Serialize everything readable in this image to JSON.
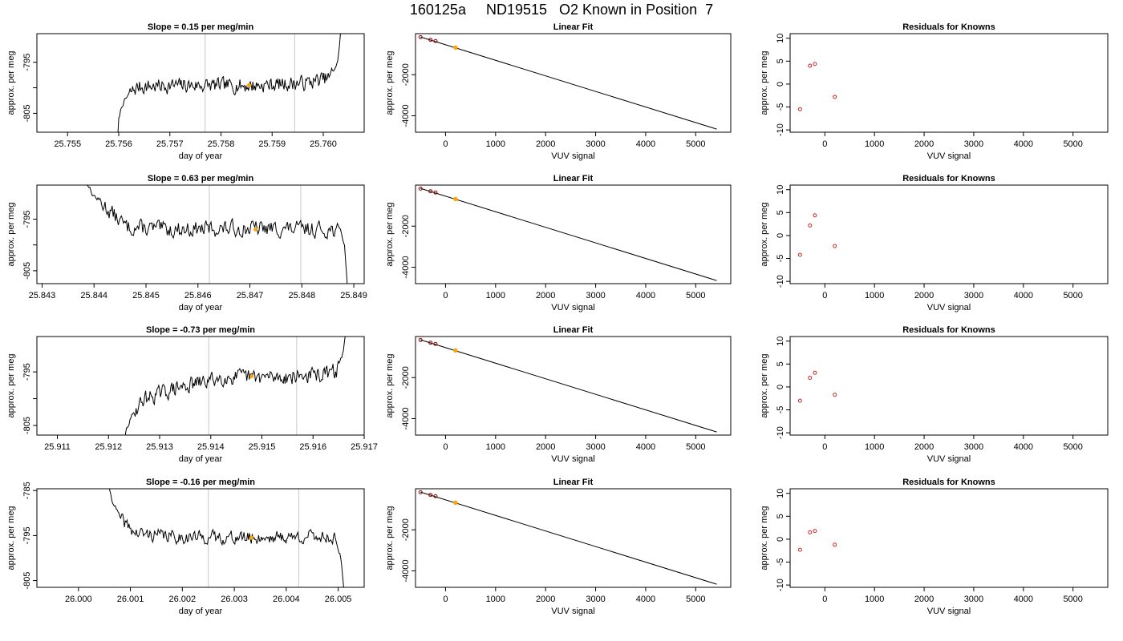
{
  "page": {
    "title": "160125a     ND19515   O2 Known in Position  7"
  },
  "colors": {
    "line": "#000000",
    "vline": "#c8c8c8",
    "marker": "#ffa500",
    "known_point": "#8b0000",
    "residual_point": "#cd2626"
  },
  "chart_data": [
    {
      "type": "line",
      "panel": "timeseries",
      "row": 1,
      "title": "Slope =  0.15  per meg/min",
      "xlabel": "day of year",
      "ylabel": "approx. per meg",
      "xlim": [
        25.7544,
        25.7608
      ],
      "ylim": [
        -808.7,
        -789.4
      ],
      "xticks": [
        25.755,
        25.756,
        25.757,
        25.758,
        25.759,
        25.76
      ],
      "xtick_labels": [
        "25.755",
        "25.756",
        "25.757",
        "25.758",
        "25.759",
        "25.760"
      ],
      "yticks": [
        -805,
        -800,
        -795
      ],
      "ytick_labels": [
        "-805",
        "",
        "-795"
      ],
      "vlines": [
        25.75769,
        25.75944
      ],
      "marker": {
        "x": 25.75855,
        "y": -799.5
      },
      "series": [
        {
          "x_start": 25.75595,
          "x_end": 25.76035,
          "trend": [
            [
              0,
              -815
            ],
            [
              0.012,
              -806
            ],
            [
              0.025,
              -803.5
            ],
            [
              0.06,
              -801
            ],
            [
              0.1,
              -799.8
            ],
            [
              0.3,
              -799.5
            ],
            [
              0.6,
              -799.6
            ],
            [
              0.85,
              -799.0
            ],
            [
              0.95,
              -798.0
            ],
            [
              0.985,
              -795
            ],
            [
              1.0,
              -788
            ]
          ],
          "noise": 1.3,
          "seed": 7
        }
      ]
    },
    {
      "type": "scatter",
      "panel": "fit",
      "row": 1,
      "title": "Linear Fit",
      "xlabel": "VUV signal",
      "ylabel": "approx. per meg",
      "xlim": [
        -600,
        5700
      ],
      "ylim": [
        -4800,
        0
      ],
      "xticks": [
        0,
        1000,
        2000,
        3000,
        4000,
        5000
      ],
      "xtick_labels": [
        "0",
        "1000",
        "2000",
        "3000",
        "4000",
        "5000"
      ],
      "yticks": [
        -4000,
        -2000
      ],
      "ytick_labels": [
        "-4000",
        "-2000"
      ],
      "line": {
        "x": [
          -500,
          5420
        ],
        "y": [
          -160,
          -4650
        ]
      },
      "points": [
        {
          "x": -500,
          "y": -170
        },
        {
          "x": -300,
          "y": -300
        },
        {
          "x": -200,
          "y": -360
        },
        {
          "x": 200,
          "y": -680
        }
      ],
      "highlight": {
        "x": 200,
        "y": -680
      }
    },
    {
      "type": "scatter",
      "panel": "residuals",
      "row": 1,
      "title": "Residuals for Knowns",
      "xlabel": "VUV signal",
      "ylabel": "approx. per meg",
      "xlim": [
        -700,
        5700
      ],
      "ylim": [
        -10.5,
        11
      ],
      "xticks": [
        0,
        1000,
        2000,
        3000,
        4000,
        5000
      ],
      "xtick_labels": [
        "0",
        "1000",
        "2000",
        "3000",
        "4000",
        "5000"
      ],
      "yticks": [
        -10,
        -5,
        0,
        5,
        10
      ],
      "ytick_labels": [
        "-10",
        "-5",
        "0",
        "5",
        "10"
      ],
      "points": [
        {
          "x": -500,
          "y": -5.5
        },
        {
          "x": -300,
          "y": 4.0
        },
        {
          "x": -200,
          "y": 4.4
        },
        {
          "x": 200,
          "y": -2.8
        }
      ]
    },
    {
      "type": "line",
      "panel": "timeseries",
      "row": 2,
      "title": "Slope =  0.63  per meg/min",
      "xlabel": "day of year",
      "ylabel": "approx. per meg",
      "xlim": [
        25.8429,
        25.8492
      ],
      "ylim": [
        -807.5,
        -788.4
      ],
      "xticks": [
        25.843,
        25.844,
        25.845,
        25.846,
        25.847,
        25.848,
        25.849
      ],
      "xtick_labels": [
        "25.843",
        "25.844",
        "25.845",
        "25.846",
        "25.847",
        "25.848",
        "25.849"
      ],
      "yticks": [
        -805,
        -800,
        -795
      ],
      "ytick_labels": [
        "-805",
        "",
        "-795"
      ],
      "vlines": [
        25.84622,
        25.84798
      ],
      "marker": {
        "x": 25.84711,
        "y": -797.0
      },
      "series": [
        {
          "x_start": 25.8438,
          "x_end": 25.8489,
          "trend": [
            [
              0,
              -786
            ],
            [
              0.03,
              -790
            ],
            [
              0.1,
              -793.5
            ],
            [
              0.16,
              -796.5
            ],
            [
              0.3,
              -797.0
            ],
            [
              0.6,
              -796.8
            ],
            [
              0.9,
              -797.0
            ],
            [
              0.97,
              -797.2
            ],
            [
              0.985,
              -800
            ],
            [
              1.0,
              -812
            ]
          ],
          "noise": 1.4,
          "seed": 13
        }
      ]
    },
    {
      "type": "scatter",
      "panel": "fit",
      "row": 2,
      "title": "Linear Fit",
      "xlabel": "VUV signal",
      "ylabel": "approx. per meg",
      "xlim": [
        -600,
        5700
      ],
      "ylim": [
        -4800,
        0
      ],
      "xticks": [
        0,
        1000,
        2000,
        3000,
        4000,
        5000
      ],
      "xtick_labels": [
        "0",
        "1000",
        "2000",
        "3000",
        "4000",
        "5000"
      ],
      "yticks": [
        -4000,
        -2000
      ],
      "ytick_labels": [
        "-4000",
        "-2000"
      ],
      "line": {
        "x": [
          -500,
          5420
        ],
        "y": [
          -160,
          -4650
        ]
      },
      "points": [
        {
          "x": -500,
          "y": -170
        },
        {
          "x": -300,
          "y": -300
        },
        {
          "x": -200,
          "y": -360
        },
        {
          "x": 200,
          "y": -680
        }
      ],
      "highlight": {
        "x": 200,
        "y": -680
      }
    },
    {
      "type": "scatter",
      "panel": "residuals",
      "row": 2,
      "title": "Residuals for Knowns",
      "xlabel": "VUV signal",
      "ylabel": "approx. per meg",
      "xlim": [
        -700,
        5700
      ],
      "ylim": [
        -10.5,
        11
      ],
      "xticks": [
        0,
        1000,
        2000,
        3000,
        4000,
        5000
      ],
      "xtick_labels": [
        "0",
        "1000",
        "2000",
        "3000",
        "4000",
        "5000"
      ],
      "yticks": [
        -10,
        -5,
        0,
        5,
        10
      ],
      "ytick_labels": [
        "-10",
        "-5",
        "0",
        "5",
        "10"
      ],
      "points": [
        {
          "x": -500,
          "y": -4.2
        },
        {
          "x": -300,
          "y": 2.2
        },
        {
          "x": -200,
          "y": 4.4
        },
        {
          "x": 200,
          "y": -2.3
        }
      ]
    },
    {
      "type": "line",
      "panel": "timeseries",
      "row": 3,
      "title": "Slope =  -0.73  per meg/min",
      "xlabel": "day of year",
      "ylabel": "approx. per meg",
      "xlim": [
        25.9106,
        25.917
      ],
      "ylim": [
        -806.8,
        -788.4
      ],
      "xticks": [
        25.911,
        25.912,
        25.913,
        25.914,
        25.915,
        25.916,
        25.917
      ],
      "xtick_labels": [
        "25.911",
        "25.912",
        "25.913",
        "25.914",
        "25.915",
        "25.916",
        "25.917"
      ],
      "yticks": [
        -805,
        -800,
        -795
      ],
      "ytick_labels": [
        "-805",
        "",
        "-795"
      ],
      "vlines": [
        25.91396,
        25.91568
      ],
      "marker": {
        "x": 25.9148,
        "y": -795.8
      },
      "series": [
        {
          "x_start": 25.91225,
          "x_end": 25.91668,
          "trend": [
            [
              0,
              -815
            ],
            [
              0.02,
              -806
            ],
            [
              0.05,
              -803
            ],
            [
              0.1,
              -800
            ],
            [
              0.25,
              -798
            ],
            [
              0.45,
              -796
            ],
            [
              0.7,
              -796
            ],
            [
              0.9,
              -795.5
            ],
            [
              0.95,
              -794.8
            ],
            [
              0.975,
              -792
            ],
            [
              1.0,
              -786
            ]
          ],
          "noise": 1.3,
          "seed": 29
        }
      ]
    },
    {
      "type": "scatter",
      "panel": "fit",
      "row": 3,
      "title": "Linear Fit",
      "xlabel": "VUV signal",
      "ylabel": "approx. per meg",
      "xlim": [
        -600,
        5700
      ],
      "ylim": [
        -4800,
        0
      ],
      "xticks": [
        0,
        1000,
        2000,
        3000,
        4000,
        5000
      ],
      "xtick_labels": [
        "0",
        "1000",
        "2000",
        "3000",
        "4000",
        "5000"
      ],
      "yticks": [
        -4000,
        -2000
      ],
      "ytick_labels": [
        "-4000",
        "-2000"
      ],
      "line": {
        "x": [
          -500,
          5420
        ],
        "y": [
          -160,
          -4650
        ]
      },
      "points": [
        {
          "x": -500,
          "y": -170
        },
        {
          "x": -300,
          "y": -300
        },
        {
          "x": -200,
          "y": -360
        },
        {
          "x": 200,
          "y": -680
        }
      ],
      "highlight": {
        "x": 200,
        "y": -680
      }
    },
    {
      "type": "scatter",
      "panel": "residuals",
      "row": 3,
      "title": "Residuals for Knowns",
      "xlabel": "VUV signal",
      "ylabel": "approx. per meg",
      "xlim": [
        -700,
        5700
      ],
      "ylim": [
        -10.5,
        11
      ],
      "xticks": [
        0,
        1000,
        2000,
        3000,
        4000,
        5000
      ],
      "xtick_labels": [
        "0",
        "1000",
        "2000",
        "3000",
        "4000",
        "5000"
      ],
      "yticks": [
        -10,
        -5,
        0,
        5,
        10
      ],
      "ytick_labels": [
        "-10",
        "-5",
        "0",
        "5",
        "10"
      ],
      "points": [
        {
          "x": -500,
          "y": -3.0
        },
        {
          "x": -300,
          "y": 2.0
        },
        {
          "x": -200,
          "y": 3.1
        },
        {
          "x": 200,
          "y": -1.7
        }
      ]
    },
    {
      "type": "line",
      "panel": "timeseries",
      "row": 4,
      "title": "Slope =  -0.16  per meg/min",
      "xlabel": "day of year",
      "ylabel": "approx. per meg",
      "xlim": [
        25.9992,
        26.0055
      ],
      "ylim": [
        -806.5,
        -784.6
      ],
      "xticks": [
        26.0,
        26.001,
        26.002,
        26.003,
        26.004,
        26.005
      ],
      "xtick_labels": [
        "26.000",
        "26.001",
        "26.002",
        "26.003",
        "26.004",
        "26.005"
      ],
      "yticks": [
        -805,
        -795,
        -785
      ],
      "ytick_labels": [
        "-805",
        "-795",
        "-785"
      ],
      "vlines": [
        26.0025,
        26.00424
      ],
      "marker": {
        "x": 26.00333,
        "y": -795.5
      },
      "series": [
        {
          "x_start": 26.00055,
          "x_end": 26.00512,
          "trend": [
            [
              0,
              -782
            ],
            [
              0.02,
              -787
            ],
            [
              0.06,
              -791.5
            ],
            [
              0.12,
              -794.5
            ],
            [
              0.3,
              -795.3
            ],
            [
              0.6,
              -795.5
            ],
            [
              0.9,
              -795.2
            ],
            [
              0.96,
              -795.5
            ],
            [
              0.985,
              -800
            ],
            [
              1.0,
              -809
            ]
          ],
          "noise": 1.3,
          "seed": 41
        }
      ]
    },
    {
      "type": "scatter",
      "panel": "fit",
      "row": 4,
      "title": "Linear Fit",
      "xlabel": "VUV signal",
      "ylabel": "approx. per meg",
      "xlim": [
        -600,
        5700
      ],
      "ylim": [
        -4800,
        0
      ],
      "xticks": [
        0,
        1000,
        2000,
        3000,
        4000,
        5000
      ],
      "xtick_labels": [
        "0",
        "1000",
        "2000",
        "3000",
        "4000",
        "5000"
      ],
      "yticks": [
        -4000,
        -2000
      ],
      "ytick_labels": [
        "-4000",
        "-2000"
      ],
      "line": {
        "x": [
          -500,
          5420
        ],
        "y": [
          -160,
          -4650
        ]
      },
      "points": [
        {
          "x": -500,
          "y": -170
        },
        {
          "x": -300,
          "y": -300
        },
        {
          "x": -200,
          "y": -360
        },
        {
          "x": 200,
          "y": -680
        }
      ],
      "highlight": {
        "x": 200,
        "y": -680
      }
    },
    {
      "type": "scatter",
      "panel": "residuals",
      "row": 4,
      "title": "Residuals for Knowns",
      "xlabel": "VUV signal",
      "ylabel": "approx. per meg",
      "xlim": [
        -700,
        5700
      ],
      "ylim": [
        -10.5,
        11
      ],
      "xticks": [
        0,
        1000,
        2000,
        3000,
        4000,
        5000
      ],
      "xtick_labels": [
        "0",
        "1000",
        "2000",
        "3000",
        "4000",
        "5000"
      ],
      "yticks": [
        -10,
        -5,
        0,
        5,
        10
      ],
      "ytick_labels": [
        "-10",
        "-5",
        "0",
        "5",
        "10"
      ],
      "points": [
        {
          "x": -500,
          "y": -2.3
        },
        {
          "x": -300,
          "y": 1.5
        },
        {
          "x": -200,
          "y": 1.8
        },
        {
          "x": 200,
          "y": -1.2
        }
      ]
    }
  ]
}
